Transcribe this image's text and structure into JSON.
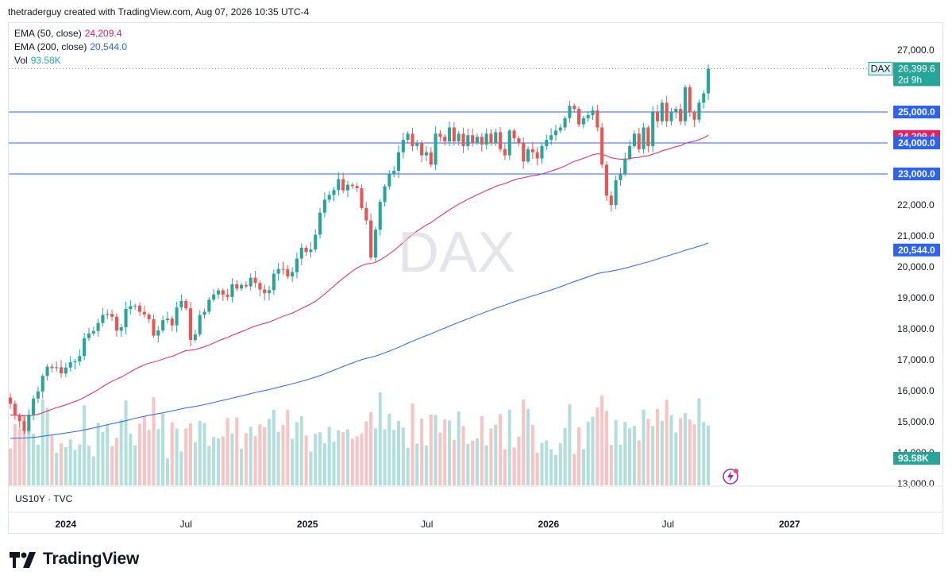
{
  "header": {
    "text": "thetraderguy created with TradingView.com, Aug 07, 2026 10:35 UTC-4"
  },
  "legend": {
    "ema50": {
      "label": "EMA (50, close)",
      "value": "24,209.4",
      "color": "#e91e63"
    },
    "ema200": {
      "label": "EMA (200, close)",
      "value": "20,544.0",
      "color": "#2962ff"
    },
    "vol": {
      "label": "Vol",
      "value": "93.58K",
      "color": "#26a69a"
    }
  },
  "watermark": "DAX",
  "symbol_label": "US10Y · TVC",
  "brand": {
    "name": "TradingView"
  },
  "price_badge": {
    "ticker": "DAX",
    "price": "26,399.6",
    "countdown": "2d 9h",
    "color": "#26a69a"
  },
  "level_badges": [
    {
      "text": "25,000.0",
      "value": 25000,
      "color": "#2962ff"
    },
    {
      "text": "24,209.4",
      "value": 24209.4,
      "color": "#e91e63"
    },
    {
      "text": "24,000.0",
      "value": 24000,
      "color": "#2962ff"
    },
    {
      "text": "23,000.0",
      "value": 23000,
      "color": "#2962ff"
    },
    {
      "text": "20,544.0",
      "value": 20544,
      "color": "#2962ff"
    }
  ],
  "vol_badge": {
    "text": "93.58K",
    "color": "#26a69a"
  },
  "colors": {
    "up": "#26a69a",
    "down": "#ef5350",
    "vol_up": "#b2dfdb",
    "vol_down": "#f8c4c3",
    "hline": "#2962ff"
  },
  "chart_data": {
    "type": "candlestick",
    "timeframe": "weekly",
    "y_ticks": [
      "27,000.0",
      "26,000.0",
      "25,000.0",
      "24,000.0",
      "23,000.0",
      "22,000.0",
      "21,000.0",
      "20,000.0",
      "19,000.0",
      "18,000.0",
      "17,000.0",
      "16,000.0",
      "15,000.0",
      "14,000.0",
      "13,000.0"
    ],
    "ylim": [
      12900,
      27300
    ],
    "x_ticks": [
      {
        "label": "2024",
        "date": "2024-01-01"
      },
      {
        "label": "Jul",
        "date": "2024-07-01"
      },
      {
        "label": "2025",
        "date": "2025-01-01"
      },
      {
        "label": "Jul",
        "date": "2025-07-01"
      },
      {
        "label": "2026",
        "date": "2026-01-01"
      },
      {
        "label": "Jul",
        "date": "2026-07-01"
      },
      {
        "label": "2027",
        "date": "2027-01-01"
      }
    ],
    "horizontal_lines": [
      25000,
      24000,
      23000
    ],
    "start_date": "2023-10-09",
    "end_date": "2027-04-26",
    "closes": [
      15580,
      15200,
      15020,
      14700,
      15230,
      15750,
      15980,
      16480,
      16780,
      16730,
      16760,
      16560,
      16750,
      16920,
      16950,
      17120,
      17700,
      17850,
      17930,
      18190,
      18450,
      18480,
      18390,
      17940,
      18050,
      18640,
      18730,
      18750,
      18550,
      18460,
      18310,
      17780,
      17950,
      18280,
      18330,
      18110,
      18690,
      18900,
      18660,
      17640,
      17820,
      18450,
      18550,
      18940,
      19110,
      19240,
      19100,
      19030,
      19440,
      19300,
      19420,
      19370,
      19650,
      19480,
      19270,
      19150,
      19250,
      19780,
      19930,
      19920,
      19690,
      19830,
      20270,
      20620,
      20480,
      20560,
      21040,
      21750,
      22170,
      22320,
      22480,
      22830,
      22470,
      22650,
      22610,
      22540,
      21900,
      21500,
      20300,
      21200,
      22100,
      22600,
      23000,
      23100,
      23700,
      24100,
      24300,
      23900,
      24000,
      23600,
      23700,
      23300,
      24300,
      24200,
      24050,
      24500,
      24050,
      24300,
      23900,
      24250,
      24000,
      24200,
      23950,
      24300,
      24000,
      24350,
      23800,
      23600,
      24400,
      24150,
      24000,
      23400,
      23800,
      23700,
      23500,
      23900,
      24100,
      24250,
      24400,
      24500,
      24800,
      25200,
      25100,
      24600,
      24800,
      24900,
      25050,
      24500,
      23300,
      22300,
      22000,
      22800,
      23000,
      23500,
      23900,
      24300,
      23800,
      24500,
      23900,
      25000,
      24700,
      25300,
      24700,
      25000,
      25100,
      24700,
      25800,
      25000,
      24750,
      25300,
      25600,
      26400
    ],
    "ema50_end": 24209.4,
    "ema200_end": 20544.0,
    "last_volume": "93.58K"
  }
}
